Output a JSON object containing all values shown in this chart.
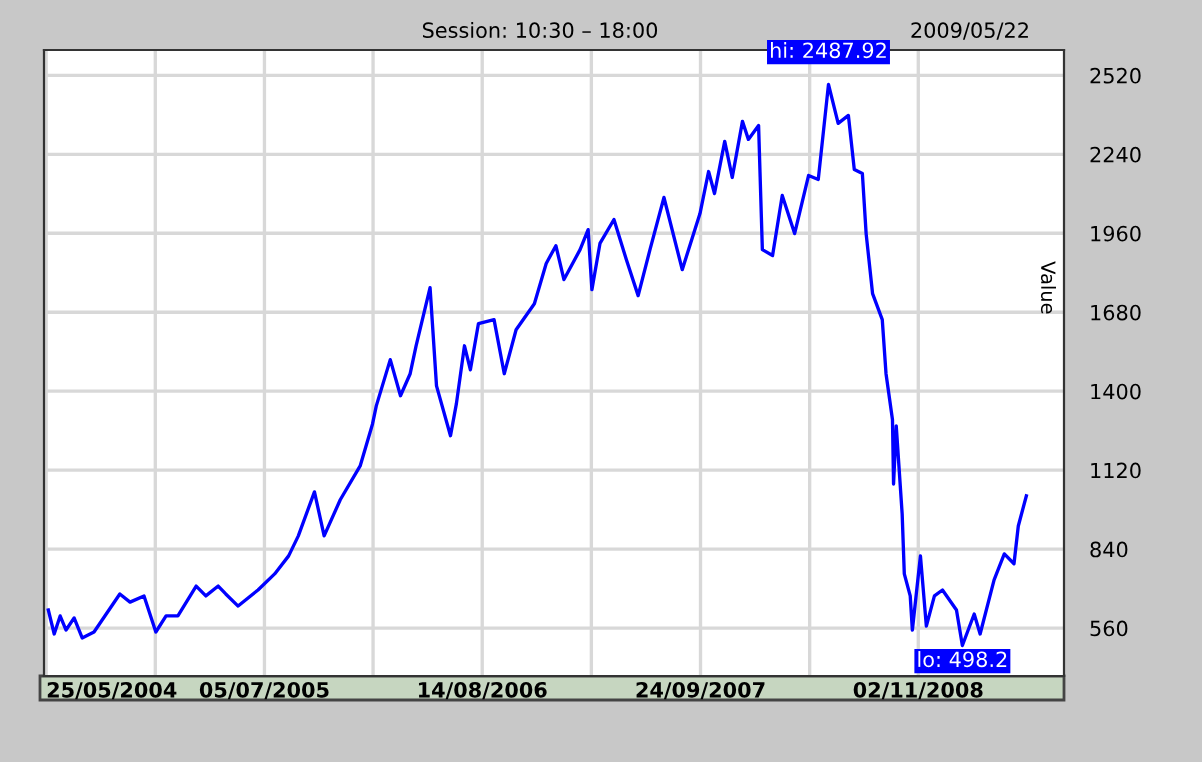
{
  "chart_data": {
    "type": "line",
    "title": "Session: 10:30 – 18:00",
    "subtitle": "2009/05/22",
    "ylabel": "Value",
    "x": [
      "2004-05-29",
      "2004-06-09",
      "2004-06-20",
      "2004-07-01",
      "2004-07-16",
      "2004-07-31",
      "2004-08-22",
      "2004-10-09",
      "2004-10-28",
      "2004-11-23",
      "2004-12-15",
      "2005-01-03",
      "2005-01-25",
      "2005-02-28",
      "2005-03-18",
      "2005-04-10",
      "2005-04-24",
      "2005-05-17",
      "2005-06-23",
      "2005-07-24",
      "2005-08-19",
      "2005-09-06",
      "2005-10-06",
      "2005-10-24",
      "2005-11-23",
      "2005-12-30",
      "2006-01-22",
      "2006-01-29",
      "2006-02-24",
      "2006-03-15",
      "2006-04-02",
      "2006-04-13",
      "2006-05-09",
      "2006-05-21",
      "2006-06-16",
      "2006-06-27",
      "2006-07-12",
      "2006-07-23",
      "2006-08-07",
      "2006-09-05",
      "2006-09-24",
      "2006-10-16",
      "2006-11-19",
      "2006-12-11",
      "2006-12-29",
      "2007-01-13",
      "2007-02-12",
      "2007-02-27",
      "2007-03-06",
      "2007-03-21",
      "2007-04-16",
      "2007-05-09",
      "2007-05-31",
      "2007-06-22",
      "2007-07-18",
      "2007-08-21",
      "2007-09-23",
      "2007-10-09",
      "2007-10-20",
      "2007-11-08",
      "2007-11-22",
      "2007-12-11",
      "2007-12-22",
      "2008-01-10",
      "2008-01-17",
      "2008-02-05",
      "2008-02-23",
      "2008-03-17",
      "2008-04-12",
      "2008-04-30",
      "2008-05-19",
      "2008-06-06",
      "2008-06-25",
      "2008-07-06",
      "2008-07-21",
      "2008-07-28",
      "2008-08-09",
      "2008-08-27",
      "2008-09-03",
      "2008-09-15",
      "2008-09-17",
      "2008-09-22",
      "2008-10-03",
      "2008-10-07",
      "2008-10-18",
      "2008-10-22",
      "2008-11-06",
      "2008-11-17",
      "2008-12-02",
      "2008-12-17",
      "2009-01-12",
      "2009-01-23",
      "2009-02-14",
      "2009-02-25",
      "2009-03-23",
      "2009-04-11",
      "2009-04-29",
      "2009-05-07",
      "2009-05-22"
    ],
    "series": [
      {
        "color": "#0000ff",
        "values": [
          624,
          539,
          603,
          553,
          596,
          525,
          546,
          681,
          652,
          674,
          546,
          603,
          603,
          709,
          674,
          709,
          681,
          638,
          695,
          752,
          816,
          887,
          1043,
          887,
          1015,
          1135,
          1284,
          1348,
          1512,
          1384,
          1462,
          1561,
          1767,
          1419,
          1242,
          1356,
          1561,
          1476,
          1640,
          1654,
          1462,
          1618,
          1710,
          1853,
          1916,
          1796,
          1902,
          1973,
          1760,
          1924,
          2009,
          1867,
          1739,
          1902,
          2087,
          1831,
          2030,
          2179,
          2101,
          2286,
          2158,
          2357,
          2293,
          2342,
          1902,
          1881,
          2094,
          1959,
          2165,
          2151,
          2487.92,
          2350,
          2378,
          2186,
          2172,
          1959,
          1746,
          1654,
          1462,
          1299,
          1071,
          1277,
          965,
          752,
          674,
          553,
          816,
          567,
          674,
          695,
          624,
          498.2,
          610,
          539,
          731,
          823,
          788,
          922,
          1029
        ]
      }
    ],
    "xlim": [
      "2004-05-21",
      "2009-07-31"
    ],
    "xticks": [
      {
        "value": "2004-05-25",
        "label": "25/05/2004"
      },
      {
        "value": "2004-12-14",
        "label": null
      },
      {
        "value": "2005-07-05",
        "label": "05/07/2005"
      },
      {
        "value": "2006-01-23",
        "label": null
      },
      {
        "value": "2006-08-14",
        "label": "14/08/2006"
      },
      {
        "value": "2007-03-05",
        "label": null
      },
      {
        "value": "2007-09-24",
        "label": "24/09/2007"
      },
      {
        "value": "2008-04-14",
        "label": null
      },
      {
        "value": "2008-11-02",
        "label": "02/11/2008"
      }
    ],
    "ylim": [
      390,
      2610
    ],
    "yticks": [
      560,
      840,
      1120,
      1400,
      1680,
      1960,
      2240,
      2520
    ],
    "grid": true,
    "annotations": [
      {
        "text": "hi: 2487.92",
        "x": "2008-05-19",
        "y": 2487.92
      },
      {
        "text": "lo: 498.2",
        "x": "2009-01-23",
        "y": 498.2
      }
    ]
  }
}
